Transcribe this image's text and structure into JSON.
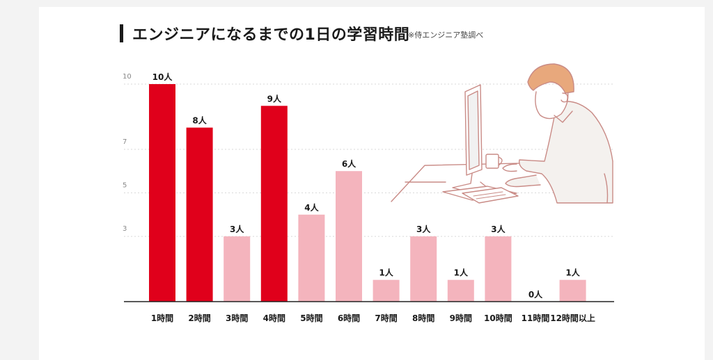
{
  "header": {
    "title": "エンジニアになるまでの1日の学習時間",
    "source_note": "※侍エンジニア塾調べ"
  },
  "colors": {
    "highlight": "#e0001b",
    "normal": "#f4b4bd",
    "axis": "#222222",
    "grid": "#d8d8d8"
  },
  "illustration": {
    "icon": "person-at-computer-icon"
  },
  "chart_data": {
    "type": "bar",
    "title": "エンジニアになるまでの1日の学習時間",
    "xlabel": "",
    "ylabel": "",
    "categories": [
      "1時間",
      "2時間",
      "3時間",
      "4時間",
      "5時間",
      "6時間",
      "7時間",
      "8時間",
      "9時間",
      "10時間",
      "11時間",
      "12時間以上"
    ],
    "values": [
      10,
      8,
      3,
      9,
      4,
      6,
      1,
      3,
      1,
      3,
      0,
      1
    ],
    "data_labels": [
      "10人",
      "8人",
      "3人",
      "9人",
      "4人",
      "6人",
      "1人",
      "3人",
      "1人",
      "3人",
      "0人",
      "1人"
    ],
    "highlighted": [
      true,
      true,
      false,
      true,
      false,
      false,
      false,
      false,
      false,
      false,
      false,
      false
    ],
    "y_ticks": [
      3,
      5,
      7,
      10
    ],
    "y_tick_labels": [
      "3",
      "5",
      "7",
      "10"
    ],
    "ylim": [
      0,
      10
    ],
    "grid": true,
    "grid_style": "dotted"
  }
}
